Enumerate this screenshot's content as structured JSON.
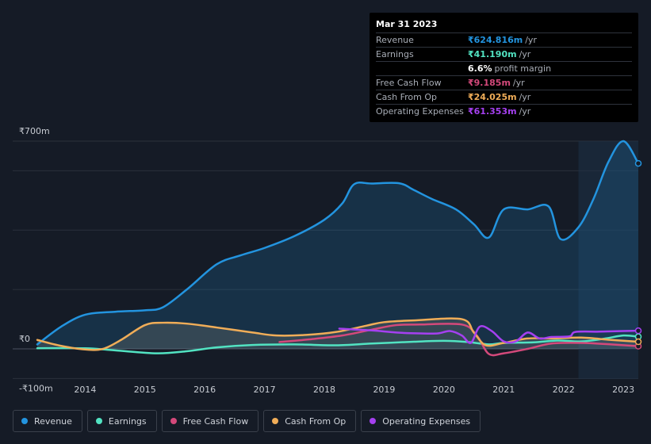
{
  "tooltip": {
    "date": "Mar 31 2023",
    "rows": [
      {
        "label": "Revenue",
        "value": "₹624.816m",
        "unit": "/yr",
        "color": "#2394df"
      },
      {
        "label": "Earnings",
        "value": "₹41.190m",
        "unit": "/yr",
        "color": "#52e3c2"
      },
      {
        "label": "",
        "value": "6.6%",
        "unit": "profit margin",
        "color": "#ffffff"
      },
      {
        "label": "Free Cash Flow",
        "value": "₹9.185m",
        "unit": "/yr",
        "color": "#d4497b"
      },
      {
        "label": "Cash From Op",
        "value": "₹24.025m",
        "unit": "/yr",
        "color": "#f0ad58"
      },
      {
        "label": "Operating Expenses",
        "value": "₹61.353m",
        "unit": "/yr",
        "color": "#a540f0"
      }
    ]
  },
  "legend": [
    {
      "label": "Revenue",
      "color": "#2394df"
    },
    {
      "label": "Earnings",
      "color": "#52e3c2"
    },
    {
      "label": "Free Cash Flow",
      "color": "#d4497b"
    },
    {
      "label": "Cash From Op",
      "color": "#f0ad58"
    },
    {
      "label": "Operating Expenses",
      "color": "#a540f0"
    }
  ],
  "chart_data": {
    "type": "area",
    "title": "",
    "unit": "₹m",
    "ylim": [
      -100,
      700
    ],
    "y_tick_labels": [
      "₹700m",
      "₹0",
      "-₹100m"
    ],
    "y_ticks": [
      700,
      0,
      -100
    ],
    "xlim": [
      2013.2,
      2023.25
    ],
    "x_tick_labels": [
      "2014",
      "2015",
      "2016",
      "2017",
      "2018",
      "2019",
      "2020",
      "2021",
      "2022",
      "2023"
    ],
    "x_ticks": [
      2014,
      2015,
      2016,
      2017,
      2018,
      2019,
      2020,
      2021,
      2022,
      2023
    ],
    "highlight_from": 2022.25,
    "series": [
      {
        "name": "Revenue",
        "color": "#2394df",
        "area": true,
        "points": [
          [
            2013.2,
            15
          ],
          [
            2013.6,
            75
          ],
          [
            2014.0,
            115
          ],
          [
            2014.5,
            125
          ],
          [
            2015.0,
            130
          ],
          [
            2015.3,
            140
          ],
          [
            2015.7,
            200
          ],
          [
            2016.2,
            285
          ],
          [
            2016.6,
            315
          ],
          [
            2017.0,
            340
          ],
          [
            2017.5,
            380
          ],
          [
            2018.0,
            435
          ],
          [
            2018.3,
            490
          ],
          [
            2018.5,
            555
          ],
          [
            2018.8,
            557
          ],
          [
            2019.25,
            558
          ],
          [
            2019.5,
            535
          ],
          [
            2019.8,
            505
          ],
          [
            2020.2,
            470
          ],
          [
            2020.5,
            420
          ],
          [
            2020.75,
            375
          ],
          [
            2021.0,
            470
          ],
          [
            2021.4,
            470
          ],
          [
            2021.75,
            480
          ],
          [
            2021.95,
            370
          ],
          [
            2022.25,
            410
          ],
          [
            2022.5,
            505
          ],
          [
            2022.75,
            630
          ],
          [
            2023.0,
            700
          ],
          [
            2023.25,
            625
          ]
        ]
      },
      {
        "name": "Earnings",
        "color": "#52e3c2",
        "area": false,
        "points": [
          [
            2013.2,
            2
          ],
          [
            2014.0,
            2
          ],
          [
            2014.5,
            -5
          ],
          [
            2015.2,
            -15
          ],
          [
            2015.7,
            -8
          ],
          [
            2016.2,
            5
          ],
          [
            2016.8,
            13
          ],
          [
            2017.5,
            15
          ],
          [
            2018.2,
            12
          ],
          [
            2018.8,
            18
          ],
          [
            2019.5,
            24
          ],
          [
            2020.0,
            27
          ],
          [
            2020.4,
            23
          ],
          [
            2020.75,
            15
          ],
          [
            2021.0,
            20
          ],
          [
            2021.5,
            22
          ],
          [
            2021.9,
            28
          ],
          [
            2022.3,
            25
          ],
          [
            2022.7,
            35
          ],
          [
            2023.0,
            45
          ],
          [
            2023.25,
            41
          ]
        ]
      },
      {
        "name": "Free Cash Flow",
        "color": "#d4497b",
        "area": false,
        "points": [
          [
            2017.25,
            23
          ],
          [
            2017.75,
            32
          ],
          [
            2018.3,
            45
          ],
          [
            2018.8,
            65
          ],
          [
            2019.2,
            80
          ],
          [
            2019.6,
            82
          ],
          [
            2020.3,
            82
          ],
          [
            2020.55,
            45
          ],
          [
            2020.75,
            -17
          ],
          [
            2021.0,
            -15
          ],
          [
            2021.4,
            0
          ],
          [
            2021.8,
            18
          ],
          [
            2022.3,
            20
          ],
          [
            2022.8,
            15
          ],
          [
            2023.25,
            9
          ]
        ]
      },
      {
        "name": "Cash From Op",
        "color": "#f0ad58",
        "area": true,
        "points": [
          [
            2013.2,
            30
          ],
          [
            2013.6,
            10
          ],
          [
            2014.0,
            -2
          ],
          [
            2014.3,
            0
          ],
          [
            2014.6,
            30
          ],
          [
            2015.0,
            80
          ],
          [
            2015.3,
            88
          ],
          [
            2015.7,
            85
          ],
          [
            2016.2,
            72
          ],
          [
            2016.8,
            55
          ],
          [
            2017.2,
            45
          ],
          [
            2017.7,
            47
          ],
          [
            2018.2,
            57
          ],
          [
            2018.7,
            78
          ],
          [
            2019.0,
            90
          ],
          [
            2019.5,
            96
          ],
          [
            2020.3,
            100
          ],
          [
            2020.5,
            55
          ],
          [
            2020.7,
            12
          ],
          [
            2021.0,
            20
          ],
          [
            2021.4,
            35
          ],
          [
            2021.8,
            35
          ],
          [
            2022.3,
            38
          ],
          [
            2022.8,
            30
          ],
          [
            2023.25,
            24
          ]
        ]
      },
      {
        "name": "Operating Expenses",
        "color": "#a540f0",
        "area": false,
        "points": [
          [
            2018.25,
            68
          ],
          [
            2018.8,
            62
          ],
          [
            2019.2,
            55
          ],
          [
            2019.6,
            52
          ],
          [
            2019.9,
            52
          ],
          [
            2020.1,
            60
          ],
          [
            2020.3,
            45
          ],
          [
            2020.45,
            20
          ],
          [
            2020.6,
            75
          ],
          [
            2020.8,
            60
          ],
          [
            2021.0,
            25
          ],
          [
            2021.2,
            25
          ],
          [
            2021.4,
            55
          ],
          [
            2021.6,
            35
          ],
          [
            2021.8,
            40
          ],
          [
            2022.1,
            42
          ],
          [
            2022.2,
            57
          ],
          [
            2022.6,
            58
          ],
          [
            2023.0,
            60
          ],
          [
            2023.25,
            61
          ]
        ]
      }
    ]
  }
}
